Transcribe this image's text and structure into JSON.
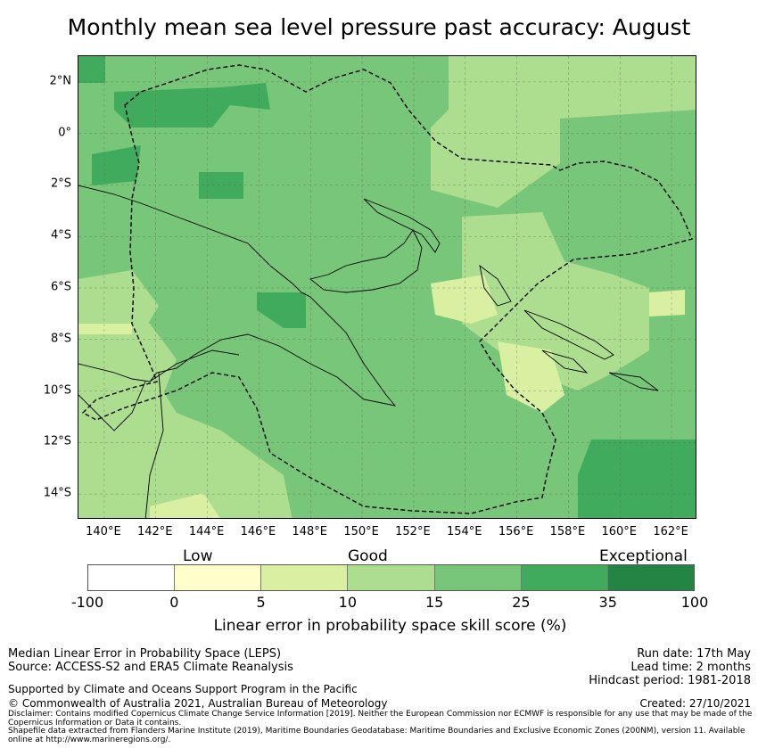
{
  "title": "Monthly mean sea level pressure past accuracy: August",
  "map": {
    "lat_labels": [
      "2°N",
      "0°",
      "2°S",
      "4°S",
      "6°S",
      "8°S",
      "10°S",
      "12°S",
      "14°S"
    ],
    "lon_labels": [
      "140°E",
      "142°E",
      "144°E",
      "146°E",
      "148°E",
      "150°E",
      "152°E",
      "154°E",
      "156°E",
      "158°E",
      "160°E",
      "162°E"
    ],
    "lon_range": [
      139,
      163
    ],
    "lat_range": [
      -15,
      3
    ]
  },
  "legend": {
    "categories": [
      "Low",
      "Good",
      "Exceptional"
    ],
    "ticks": [
      "-100",
      "0",
      "5",
      "10",
      "15",
      "25",
      "35",
      "100"
    ],
    "colors": [
      "#ffffff",
      "#ffffcc",
      "#d9f0a3",
      "#addd8e",
      "#78c679",
      "#41ab5d",
      "#238443"
    ],
    "label": "Linear error in probability space skill score (%)"
  },
  "footer": {
    "left_line1": "Median Linear Error in Probability Space (LEPS)",
    "left_line2": "Source: ACCESS-S2 and ERA5 Climate Reanalysis",
    "support": "Supported by Climate and Oceans Support Program in the Pacific",
    "copyright": "© Commonwealth of Australia 2021, Australian Bureau of Meteorology",
    "run_date": "Run date: 17th May",
    "lead_time": "Lead time: 2 months",
    "hindcast": "Hindcast period: 1981-2018",
    "created": "Created: 27/10/2021",
    "disclaimer": "Disclaimer: Contains modified Copernicus Climate Change Service Information [2019]. Neither the European Commission nor ECMWF is responsible for any use that may be made of the Copernicus Information or Data it contains.",
    "shapefile": "Shapefile data extracted from Flanders Marine Institute (2019), Maritime Boundaries Geodatabase: Maritime Boundaries and Exclusive Economic Zones (200NM), version 11. Available online at http://www.marineregions.org/."
  }
}
